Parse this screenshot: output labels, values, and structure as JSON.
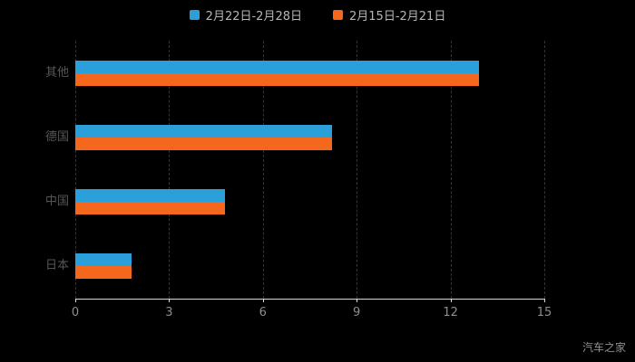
{
  "watermark": "汽车之家",
  "colors": {
    "background": "#000000",
    "series1": "#2b9fd9",
    "series2": "#f5671c",
    "grid": "#343434",
    "axis": "#d9d9d9",
    "tick_label": "#8e8e8e",
    "category_label": "#565656",
    "legend_text": "#b6b6b6"
  },
  "chart_data": {
    "type": "bar",
    "orientation": "horizontal",
    "title": "",
    "xlabel": "",
    "ylabel": "",
    "categories": [
      "其他",
      "德国",
      "中国",
      "日本"
    ],
    "series": [
      {
        "name": "2月22日-2月28日",
        "color": "#2b9fd9",
        "values": [
          12.9,
          8.2,
          4.8,
          1.8
        ]
      },
      {
        "name": "2月15日-2月21日",
        "color": "#f5671c",
        "values": [
          12.9,
          8.2,
          4.8,
          1.8
        ]
      }
    ],
    "xlim": [
      0,
      15
    ],
    "xticks": [
      0,
      3,
      6,
      9,
      12,
      15
    ],
    "grid": "vertical-dashed",
    "legend_position": "top"
  }
}
